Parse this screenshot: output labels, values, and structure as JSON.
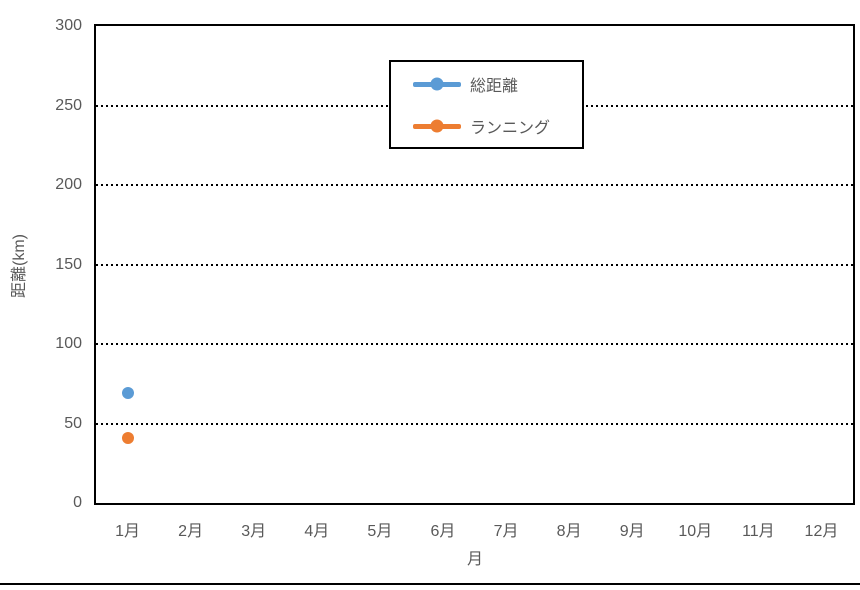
{
  "colors": {
    "series1": "#5B9BD5",
    "series2": "#ED7D31",
    "axis_text": "#595959",
    "frame": "#000000",
    "background": "#FFFFFF"
  },
  "chart_data": {
    "type": "line",
    "title": "",
    "categories": [
      "1月",
      "2月",
      "3月",
      "4月",
      "5月",
      "6月",
      "7月",
      "8月",
      "9月",
      "10月",
      "11月",
      "12月"
    ],
    "series": [
      {
        "name": "総距離",
        "color": "#5B9BD5",
        "marker": "circle",
        "values": [
          69,
          null,
          null,
          null,
          null,
          null,
          null,
          null,
          null,
          null,
          null,
          null
        ]
      },
      {
        "name": "ランニング",
        "color": "#ED7D31",
        "marker": "circle",
        "values": [
          41,
          null,
          null,
          null,
          null,
          null,
          null,
          null,
          null,
          null,
          null,
          null
        ]
      }
    ],
    "xlabel": "月",
    "ylabel": "距離(km)",
    "ylim": [
      0,
      300
    ],
    "ytick_step": 50,
    "yticks": [
      0,
      50,
      100,
      150,
      200,
      250,
      300
    ],
    "grid": "horizontal dotted",
    "legend_position": "top-center-inside"
  }
}
